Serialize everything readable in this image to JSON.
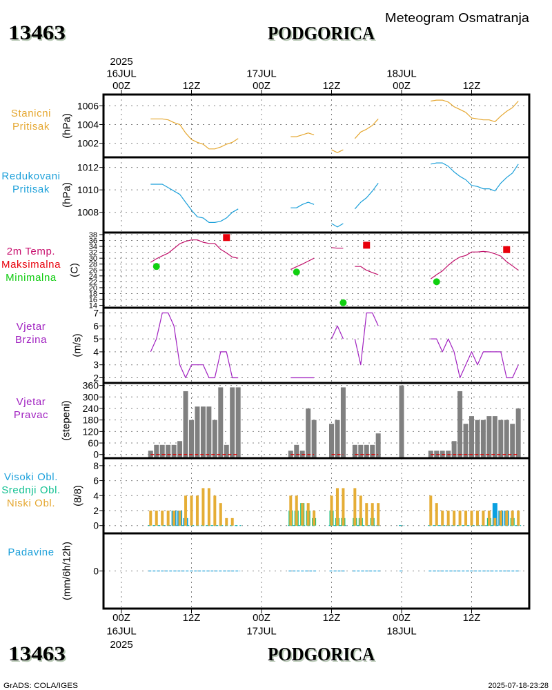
{
  "header": {
    "station_id": "13463",
    "station_name": "PODGORICA",
    "subtitle": "Meteogram Osmatranja"
  },
  "footer": {
    "station_id": "13463",
    "station_name": "PODGORICA",
    "software": "GrADS: COLA/IGES",
    "timestamp": "2025-07-18-23:28"
  },
  "chart_data": {
    "type": "line",
    "title": "Meteogram Osmatranja",
    "station": "13463 PODGORICA",
    "x_axis": {
      "origin": "16JUL 00Z",
      "xlim": [
        "15JUL 21Z",
        "18JUL 22Z"
      ],
      "grid": true,
      "ticks": [
        {
          "t": "16JUL 00Z",
          "top": [
            "2025",
            "16JUL",
            "00Z"
          ],
          "bottom": [
            "00Z",
            "16JUL",
            "2025"
          ]
        },
        {
          "t": "16JUL 12Z",
          "top": [
            "12Z"
          ],
          "bottom": [
            "12Z"
          ]
        },
        {
          "t": "17JUL 00Z",
          "top": [
            "17JUL",
            "00Z"
          ],
          "bottom": [
            "00Z",
            "17JUL"
          ]
        },
        {
          "t": "17JUL 12Z",
          "top": [
            "12Z"
          ],
          "bottom": [
            "12Z"
          ]
        },
        {
          "t": "18JUL 00Z",
          "top": [
            "18JUL",
            "00Z"
          ],
          "bottom": [
            "00Z",
            "18JUL"
          ]
        },
        {
          "t": "18JUL 12Z",
          "top": [
            "12Z"
          ],
          "bottom": [
            "12Z"
          ]
        }
      ]
    },
    "panels": [
      {
        "name": "station-pressure",
        "kind": "line",
        "labels": [
          {
            "text": "Stanicni",
            "color": "#e5a730"
          },
          {
            "text": "Pritisak",
            "color": "#e5a730"
          }
        ],
        "unit": "(hPa)",
        "ylim": [
          1000.5,
          1007.2
        ],
        "yticks": [
          1002,
          1004,
          1006
        ],
        "grid": true,
        "series": "station_pressure",
        "color": "#e5a730"
      },
      {
        "name": "reduced-pressure",
        "kind": "line",
        "labels": [
          {
            "text": "Redukovani",
            "color": "#1a9fd9"
          },
          {
            "text": "Pritisak",
            "color": "#1a9fd9"
          }
        ],
        "unit": "(hPa)",
        "ylim": [
          1006.2,
          1012.9
        ],
        "yticks": [
          1008,
          1010,
          1012
        ],
        "grid": true,
        "series": "reduced_pressure",
        "color": "#1a9fd9"
      },
      {
        "name": "temperature",
        "kind": "line",
        "labels": [
          {
            "text": "2m Temp.",
            "color": "#c8106e"
          },
          {
            "text": "Maksimalna",
            "color": "#e8000b"
          },
          {
            "text": "Minimalna",
            "color": "#10cc10"
          }
        ],
        "unit": "(C)",
        "ylim": [
          13.2,
          38.7
        ],
        "yticks": [
          14,
          16,
          18,
          20,
          22,
          24,
          26,
          28,
          30,
          32,
          34,
          36,
          38
        ],
        "grid": true,
        "series": "temperature",
        "color": "#c0106a",
        "max_color": "#e8000b",
        "min_color": "#10d010"
      },
      {
        "name": "wind-speed",
        "kind": "line",
        "labels": [
          {
            "text": "Vjetar",
            "color": "#a020c0"
          },
          {
            "text": "Brzina",
            "color": "#a020c0"
          }
        ],
        "unit": "(m/s)",
        "ylim": [
          1.6,
          7.4
        ],
        "yticks": [
          2,
          3,
          4,
          5,
          6,
          7
        ],
        "grid": true,
        "series": "wind_speed",
        "color": "#a020c0"
      },
      {
        "name": "wind-direction",
        "kind": "bar",
        "labels": [
          {
            "text": "Vjetar",
            "color": "#a020c0"
          },
          {
            "text": "Pravac",
            "color": "#a020c0"
          }
        ],
        "unit": "(stepeni)",
        "ylim": [
          -19,
          373
        ],
        "yticks": [
          0,
          60,
          120,
          180,
          240,
          300,
          360
        ],
        "grid": true,
        "series": "wind_direction",
        "color": "#808080",
        "baseline": {
          "value": 0,
          "color": "#e00000",
          "follows": "wind_speed"
        }
      },
      {
        "name": "clouds",
        "kind": "cloud-bars",
        "labels": [
          {
            "text": "Visoki Obl.",
            "color": "#1aa0dc"
          },
          {
            "text": "Srednji Obl.",
            "color": "#10c090"
          },
          {
            "text": "Niski Obl.",
            "color": "#e5a730"
          }
        ],
        "unit": "(8/8)",
        "ylim": [
          -1.04,
          9.0
        ],
        "yticks": [
          0,
          2,
          4,
          6,
          8
        ],
        "grid": true,
        "series": [
          {
            "key": "cloud_high",
            "name": "Visoki Obl.",
            "color": "#0aa0e0"
          },
          {
            "key": "cloud_mid",
            "name": "Srednji Obl.",
            "color": "#10c080"
          },
          {
            "key": "cloud_low",
            "name": "Niski Obl.",
            "color": "#e5ad35"
          }
        ],
        "baseline_color": "#10b0b0"
      },
      {
        "name": "precipitation",
        "kind": "dash",
        "labels": [
          {
            "text": "Padavine",
            "color": "#1a9fd9"
          }
        ],
        "unit": "(mm/6h/12h)",
        "ylim": [
          -1,
          1
        ],
        "yticks": [
          0
        ],
        "grid": true,
        "series": "precipitation",
        "color": "#1a9fd9"
      }
    ],
    "series": {
      "times": [
        "16JUL 05Z",
        "16JUL 06Z",
        "16JUL 07Z",
        "16JUL 08Z",
        "16JUL 09Z",
        "16JUL 10Z",
        "16JUL 11Z",
        "16JUL 12Z",
        "16JUL 13Z",
        "16JUL 14Z",
        "16JUL 15Z",
        "16JUL 16Z",
        "16JUL 17Z",
        "16JUL 18Z",
        "16JUL 19Z",
        "16JUL 20Z",
        "17JUL 05Z",
        "17JUL 06Z",
        "17JUL 07Z",
        "17JUL 08Z",
        "17JUL 09Z",
        "17JUL 12Z",
        "17JUL 13Z",
        "17JUL 14Z",
        "17JUL 16Z",
        "17JUL 17Z",
        "17JUL 18Z",
        "17JUL 19Z",
        "17JUL 20Z",
        "18JUL 00Z",
        "18JUL 05Z",
        "18JUL 06Z",
        "18JUL 07Z",
        "18JUL 08Z",
        "18JUL 09Z",
        "18JUL 10Z",
        "18JUL 11Z",
        "18JUL 12Z",
        "18JUL 13Z",
        "18JUL 14Z",
        "18JUL 15Z",
        "18JUL 16Z",
        "18JUL 17Z",
        "18JUL 18Z",
        "18JUL 19Z",
        "18JUL 20Z"
      ],
      "station_pressure": [
        1004.6,
        1004.6,
        1004.6,
        1004.5,
        1004.2,
        1004.0,
        1003.1,
        1002.4,
        1002.1,
        1001.9,
        1001.4,
        1001.4,
        1001.6,
        1001.9,
        1002.1,
        1002.5,
        1002.7,
        1002.7,
        1002.9,
        1003.1,
        1002.9,
        1001.3,
        1001.0,
        1001.3,
        1002.5,
        1003.2,
        1003.5,
        1003.9,
        1004.6,
        null,
        1006.5,
        1006.6,
        1006.6,
        1006.4,
        1005.9,
        1005.6,
        1005.3,
        1004.7,
        1004.6,
        1004.5,
        1004.5,
        1004.3,
        1004.9,
        1005.4,
        1005.8,
        1006.5
      ],
      "reduced_pressure": [
        1010.5,
        1010.5,
        1010.5,
        1010.2,
        1009.9,
        1009.6,
        1008.9,
        1008.2,
        1007.6,
        1007.5,
        1007.1,
        1007.1,
        1007.2,
        1007.5,
        1008.0,
        1008.3,
        1008.4,
        1008.4,
        1008.7,
        1008.9,
        1008.7,
        1007.0,
        1006.7,
        1007.0,
        1008.3,
        1008.9,
        1009.3,
        1009.9,
        1010.6,
        null,
        1012.3,
        1012.4,
        1012.4,
        1012.1,
        1011.6,
        1011.2,
        1010.9,
        1010.4,
        1010.3,
        1010.1,
        1010.1,
        1009.9,
        1010.6,
        1011.1,
        1011.5,
        1012.3
      ],
      "temperature": [
        28.6,
        29.8,
        30.8,
        31.7,
        33.3,
        34.9,
        35.7,
        36.2,
        36.2,
        35.4,
        35.0,
        35.0,
        33.0,
        31.8,
        30.4,
        30.0,
        26.2,
        27.1,
        28.0,
        29.0,
        30.0,
        33.6,
        33.4,
        33.4,
        27.2,
        27.2,
        25.9,
        25.1,
        24.4,
        null,
        23.0,
        24.4,
        25.7,
        27.6,
        29.2,
        30.4,
        30.9,
        32.1,
        32.1,
        32.3,
        32.1,
        31.5,
        30.7,
        28.8,
        27.4,
        25.9
      ],
      "wind_speed": [
        4,
        5,
        7,
        7,
        6,
        3,
        2,
        3,
        3,
        3,
        2,
        2,
        4,
        4,
        2,
        2,
        2,
        2,
        2,
        2,
        2,
        5,
        6,
        5,
        5,
        3,
        7,
        7,
        6,
        null,
        5,
        5,
        4,
        5,
        4,
        2,
        3,
        4,
        3,
        4,
        4,
        4,
        4,
        2,
        2,
        3
      ],
      "wind_direction": [
        20,
        50,
        50,
        50,
        50,
        70,
        330,
        180,
        250,
        250,
        250,
        180,
        350,
        50,
        350,
        350,
        20,
        50,
        20,
        240,
        180,
        160,
        180,
        350,
        50,
        50,
        50,
        50,
        110,
        360,
        20,
        20,
        20,
        20,
        70,
        330,
        160,
        200,
        180,
        180,
        200,
        200,
        180,
        180,
        160,
        240
      ],
      "cloud_high": [
        0,
        0,
        0,
        0,
        2,
        2,
        1,
        0,
        0,
        0,
        0,
        0,
        0,
        0,
        0,
        0,
        0,
        0,
        0,
        0,
        0,
        0,
        0,
        0,
        0,
        0,
        0,
        0,
        0,
        0,
        0,
        0,
        0,
        0,
        0,
        0,
        0,
        0,
        0,
        0,
        0,
        3,
        2,
        2,
        0,
        0
      ],
      "cloud_mid": [
        0,
        0,
        0,
        0,
        0,
        0,
        0,
        0,
        0,
        0,
        0,
        0,
        0,
        0,
        0,
        0,
        2,
        2,
        3,
        2,
        1,
        2,
        1,
        1,
        1,
        1,
        0,
        1,
        0,
        0,
        0,
        0,
        0,
        0,
        0,
        0,
        0,
        0,
        0,
        0,
        1,
        0,
        0,
        0,
        1,
        0
      ],
      "cloud_low": [
        2,
        2,
        2,
        2,
        2,
        2,
        4,
        4,
        4,
        5,
        5,
        4,
        3,
        1,
        1,
        0,
        4,
        4,
        3,
        3,
        2,
        4,
        5,
        5,
        5,
        4,
        3,
        3,
        3,
        0,
        4,
        3,
        2,
        2,
        2,
        2,
        2,
        2,
        2,
        2,
        2,
        1,
        2,
        2,
        2,
        2
      ],
      "precipitation": [
        0,
        0,
        0,
        0,
        0,
        0,
        0,
        0,
        0,
        0,
        0,
        0,
        0,
        0,
        0,
        0,
        0,
        0,
        0,
        0,
        0,
        0,
        0,
        0,
        0,
        0,
        0,
        0,
        0,
        0,
        0,
        0,
        0,
        0,
        0,
        0,
        0,
        0,
        0,
        0,
        0,
        0,
        0,
        0,
        0,
        0
      ]
    },
    "tmax": [
      {
        "t": "16JUL 18Z",
        "v": 37.0
      },
      {
        "t": "17JUL 18Z",
        "v": 34.4
      },
      {
        "t": "18JUL 18Z",
        "v": 32.9
      }
    ],
    "tmin": [
      {
        "t": "16JUL 06Z",
        "v": 27.2
      },
      {
        "t": "17JUL 06Z",
        "v": 25.3
      },
      {
        "t": "17JUL 14Z",
        "v": 14.9
      },
      {
        "t": "18JUL 06Z",
        "v": 22.0
      }
    ]
  }
}
